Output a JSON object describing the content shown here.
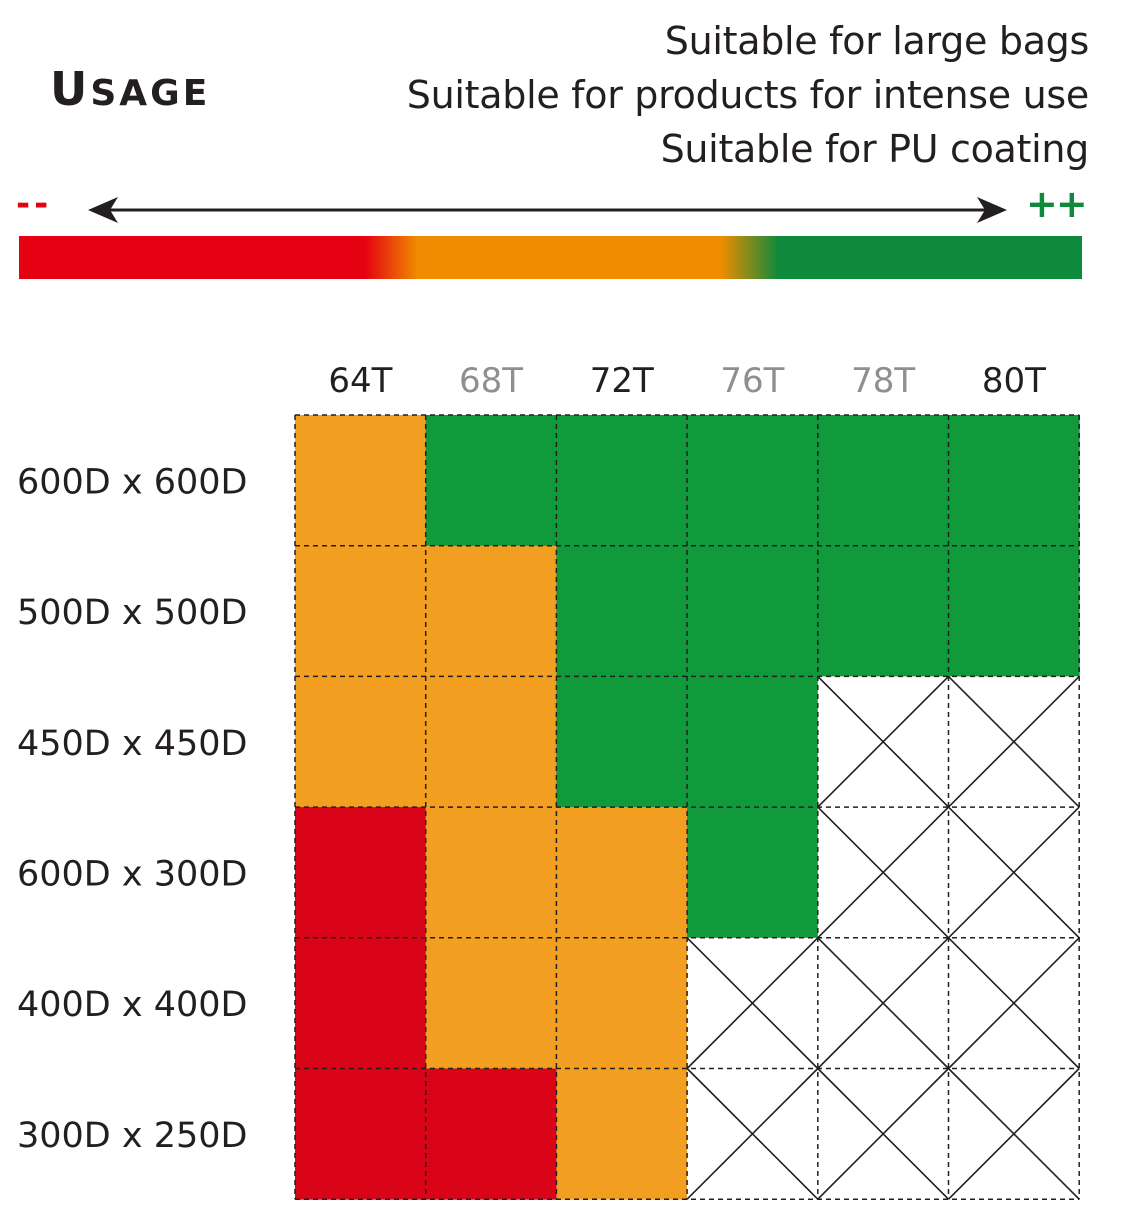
{
  "title": {
    "first_letter": "U",
    "rest": "SAGE"
  },
  "notes": [
    "Suitable for large bags",
    "Suitable for products for intense use",
    "Suitable for PU coating"
  ],
  "scale": {
    "low_label": "--",
    "high_label": "++"
  },
  "colors": {
    "bad": "#d90418",
    "medium": "#f29e20",
    "good": "#119a3c",
    "bar_red": "#e50012",
    "bar_orange": "#f08c00",
    "bar_green": "#0d8a3c",
    "muted_label": "#8f8f8f",
    "label": "#231f20"
  },
  "chart_data": {
    "type": "heatmap",
    "columns": [
      {
        "label": "64T",
        "muted": false
      },
      {
        "label": "68T",
        "muted": true
      },
      {
        "label": "72T",
        "muted": false
      },
      {
        "label": "76T",
        "muted": true
      },
      {
        "label": "78T",
        "muted": true
      },
      {
        "label": "80T",
        "muted": false
      }
    ],
    "rows": [
      "600D x 600D",
      "500D x 500D",
      "450D x 450D",
      "600D x 300D",
      "400D x 400D",
      "300D x 250D"
    ],
    "legend_scale": [
      "bad",
      "medium",
      "good",
      "not available"
    ],
    "values": [
      [
        "medium",
        "good",
        "good",
        "good",
        "good",
        "good"
      ],
      [
        "medium",
        "medium",
        "good",
        "good",
        "good",
        "good"
      ],
      [
        "medium",
        "medium",
        "good",
        "good",
        "none",
        "none"
      ],
      [
        "bad",
        "medium",
        "medium",
        "good",
        "none",
        "none"
      ],
      [
        "bad",
        "medium",
        "medium",
        "none",
        "none",
        "none"
      ],
      [
        "bad",
        "bad",
        "medium",
        "none",
        "none",
        "none"
      ]
    ]
  }
}
